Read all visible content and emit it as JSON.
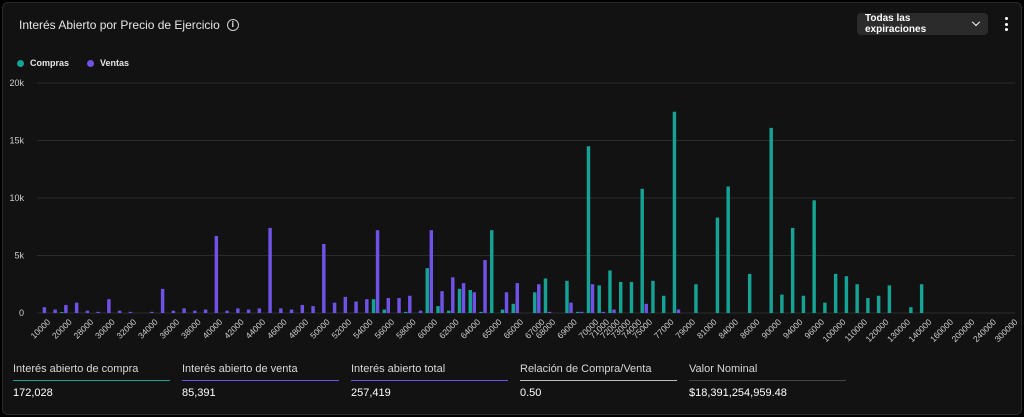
{
  "header": {
    "title": "Interés Abierto por Precio de Ejercicio",
    "expiry_select": "Todas las expiraciones"
  },
  "colors": {
    "calls": "#14a394",
    "puts": "#7152e8"
  },
  "legend": {
    "calls": "Compras",
    "puts": "Ventas"
  },
  "stats": [
    {
      "label": "Interés abierto de compra",
      "value": "172,028",
      "accent": "#14a394"
    },
    {
      "label": "Interés abierto de venta",
      "value": "85,391",
      "accent": "#7152e8"
    },
    {
      "label": "Interés abierto total",
      "value": "257,419",
      "accent": "#7152e8"
    },
    {
      "label": "Relación de Compra/Venta",
      "value": "0.50",
      "accent": "#bbbbbb"
    },
    {
      "label": "Valor Nominal",
      "value": "$18,391,254,959.48",
      "accent": "#444444"
    }
  ],
  "chart_data": {
    "type": "bar",
    "title": "Interés Abierto por Precio de Ejercicio",
    "xlabel": "",
    "ylabel": "",
    "ylim": [
      0,
      20000
    ],
    "y_ticks": [
      "0",
      "5k",
      "10k",
      "15k",
      "20k"
    ],
    "grid": "horizontal",
    "legend_position": "top-left",
    "categories": [
      "10000",
      "15000",
      "20000",
      "25000",
      "28000",
      "29000",
      "30000",
      "31000",
      "32000",
      "33000",
      "34000",
      "35000",
      "36000",
      "37000",
      "38000",
      "39000",
      "40000",
      "41000",
      "42000",
      "43000",
      "44000",
      "45000",
      "46000",
      "47000",
      "48000",
      "49000",
      "50000",
      "51000",
      "52000",
      "53000",
      "54000",
      "55000",
      "56000",
      "57000",
      "58000",
      "59000",
      "60000",
      "61000",
      "62000",
      "63000",
      "64000",
      "64500",
      "65000",
      "65500",
      "66000",
      "66500",
      "67000",
      "68000",
      "68500",
      "69000",
      "69500",
      "70000",
      "71000",
      "72000",
      "73000",
      "74000",
      "75000",
      "76000",
      "77000",
      "78000",
      "79000",
      "80000",
      "81000",
      "82000",
      "84000",
      "85000",
      "86000",
      "88000",
      "90000",
      "92000",
      "94000",
      "95000",
      "96000",
      "98000",
      "100000",
      "105000",
      "110000",
      "115000",
      "120000",
      "125000",
      "130000",
      "135000",
      "140000",
      "150000",
      "160000",
      "180000",
      "200000",
      "220000",
      "240000",
      "260000",
      "300000"
    ],
    "x_tick_labels": [
      "10000",
      "20000",
      "28000",
      "30000",
      "32000",
      "34000",
      "36000",
      "38000",
      "40000",
      "42000",
      "44000",
      "46000",
      "48000",
      "50000",
      "52000",
      "54000",
      "56000",
      "58000",
      "60000",
      "62000",
      "64000",
      "65000",
      "66000",
      "67000",
      "68000",
      "69000",
      "70000",
      "71000",
      "72000",
      "73000",
      "74000",
      "75000",
      "77000",
      "79000",
      "81000",
      "84000",
      "86000",
      "90000",
      "94000",
      "96000",
      "100000",
      "110000",
      "120000",
      "130000",
      "140000",
      "160000",
      "200000",
      "240000",
      "300000"
    ],
    "series": [
      {
        "name": "Compras",
        "values": [
          0,
          0,
          80,
          0,
          0,
          0,
          0,
          0,
          0,
          0,
          0,
          0,
          0,
          0,
          0,
          0,
          0,
          0,
          0,
          0,
          0,
          0,
          0,
          0,
          0,
          0,
          0,
          0,
          0,
          0,
          0,
          1200,
          300,
          0,
          100,
          0,
          3900,
          600,
          200,
          2100,
          2000,
          100,
          7200,
          300,
          800,
          0,
          1800,
          3000,
          0,
          2800,
          100,
          14500,
          2400,
          3700,
          2700,
          2700,
          10800,
          2800,
          1500,
          17500,
          0,
          2500,
          0,
          8300,
          11000,
          0,
          3400,
          0,
          16100,
          1600,
          7400,
          1500,
          9800,
          900,
          3400,
          3200,
          2500,
          1300,
          1500,
          2400,
          0,
          500,
          2500,
          0,
          0,
          0,
          0,
          0,
          0,
          0,
          0
        ]
      },
      {
        "name": "Ventas",
        "values": [
          500,
          300,
          700,
          900,
          200,
          100,
          1200,
          200,
          100,
          0,
          100,
          2100,
          200,
          400,
          200,
          300,
          6700,
          200,
          400,
          300,
          400,
          7400,
          400,
          300,
          700,
          600,
          6000,
          900,
          1400,
          1000,
          1200,
          7200,
          1300,
          1300,
          1500,
          200,
          7200,
          1900,
          3100,
          2600,
          1800,
          4600,
          0,
          1800,
          2600,
          0,
          2500,
          100,
          0,
          900,
          100,
          2500,
          100,
          300,
          0,
          0,
          800,
          0,
          0,
          300,
          0,
          0,
          0,
          0,
          0,
          0,
          0,
          0,
          0,
          0,
          0,
          0,
          0,
          0,
          0,
          0,
          0,
          0,
          0,
          0,
          0,
          0,
          0,
          0,
          0,
          0,
          0,
          0,
          0,
          0,
          0
        ]
      }
    ]
  }
}
